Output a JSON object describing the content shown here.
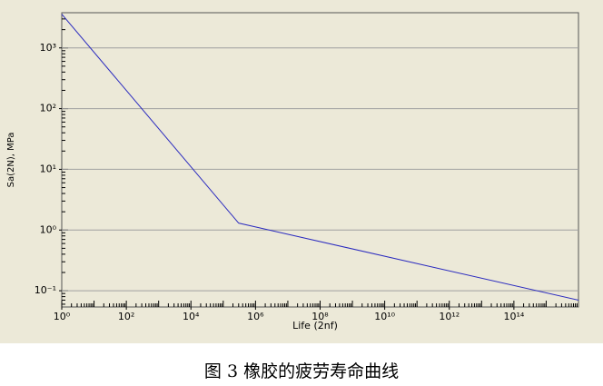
{
  "chart_data": {
    "type": "line",
    "caption": "图 3  橡胶的疲劳寿命曲线",
    "x_label": "Life (2nf)",
    "y_label": "Sa(2N), MPa",
    "log_x": true,
    "log_y": true,
    "grid": true,
    "xlim": [
      1,
      1e+16
    ],
    "ylim": [
      0.054,
      3800
    ],
    "xticks": [
      {
        "value": 1,
        "label": "10⁰"
      },
      {
        "value": 100,
        "label": "10²"
      },
      {
        "value": 10000,
        "label": "10⁴"
      },
      {
        "value": 1000000,
        "label": "10⁶"
      },
      {
        "value": 100000000,
        "label": "10⁸"
      },
      {
        "value": 10000000000,
        "label": "10¹⁰"
      },
      {
        "value": 1000000000000,
        "label": "10¹²"
      },
      {
        "value": 100000000000000,
        "label": "10¹⁴"
      }
    ],
    "yticks": [
      {
        "value": 0.1,
        "label": "10⁻¹"
      },
      {
        "value": 1,
        "label": "10⁰"
      },
      {
        "value": 10,
        "label": "10¹"
      },
      {
        "value": 100,
        "label": "10²"
      },
      {
        "value": 1000,
        "label": "10³"
      }
    ],
    "x": [
      1,
      300000,
      1e+16
    ],
    "series": [
      {
        "color": "#2b2bbf",
        "values": [
          3600,
          1.3,
          0.07
        ]
      }
    ]
  }
}
